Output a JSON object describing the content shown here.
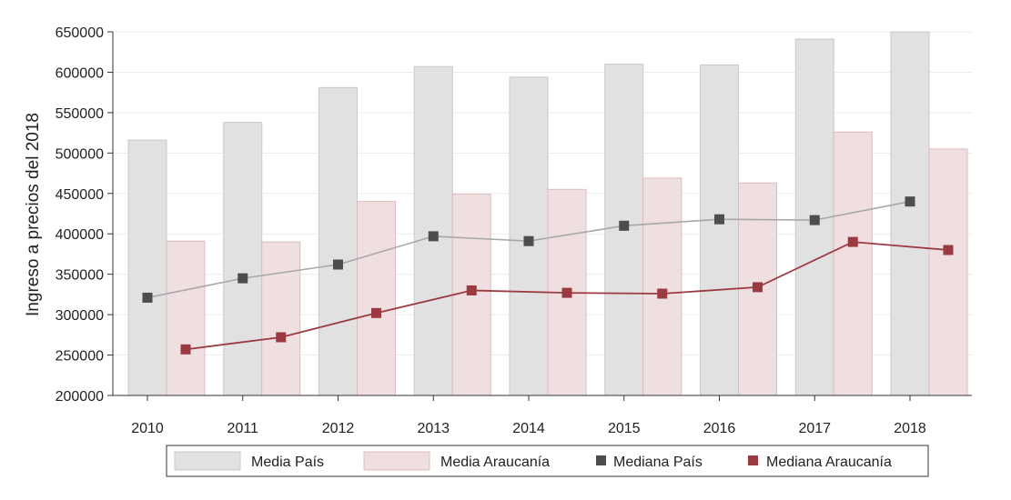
{
  "chart_data": {
    "type": "bar",
    "categories": [
      "2010",
      "2011",
      "2012",
      "2013",
      "2014",
      "2015",
      "2016",
      "2017",
      "2018"
    ],
    "ylabel": "Ingreso a precios del 2018",
    "ylim": [
      200000,
      650000
    ],
    "yticks": [
      200000,
      250000,
      300000,
      350000,
      400000,
      450000,
      500000,
      550000,
      600000,
      650000
    ],
    "grid": true,
    "legend_position": "bottom",
    "bar_series": [
      {
        "name": "Media País",
        "color": "#e1e1e1",
        "values": [
          516000,
          538000,
          581000,
          607000,
          594000,
          610000,
          609000,
          641000,
          650000
        ]
      },
      {
        "name": "Media Araucanía",
        "color": "#f0dfe0",
        "values": [
          391000,
          390000,
          440000,
          449000,
          455000,
          469000,
          463000,
          526000,
          505000
        ]
      }
    ],
    "line_series": [
      {
        "name": "Mediana País",
        "color": "#4d4d4d",
        "line_color": "#a8a8a8",
        "values": [
          321000,
          345000,
          362000,
          397000,
          391000,
          410000,
          418000,
          417000,
          440000
        ]
      },
      {
        "name": "Mediana Araucanía",
        "color": "#9b3a40",
        "line_color": "#9b3a40",
        "values": [
          257000,
          272000,
          302000,
          330000,
          327000,
          326000,
          334000,
          390000,
          380000
        ]
      }
    ]
  }
}
